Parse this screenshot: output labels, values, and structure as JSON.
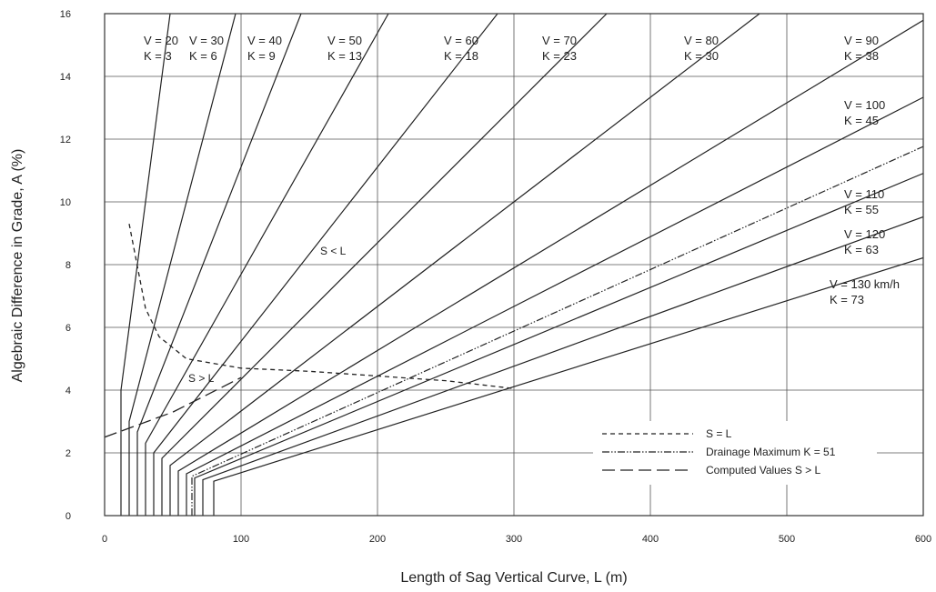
{
  "chart_data": {
    "type": "line",
    "xlabel": "Length of Sag Vertical Curve, L (m)",
    "ylabel": "Algebraic Difference in Grade, A (%)",
    "xlim": [
      0,
      600
    ],
    "ylim": [
      0,
      16
    ],
    "x_ticks": [
      "0",
      "100",
      "200",
      "300",
      "400",
      "500",
      "600"
    ],
    "y_ticks": [
      "0",
      "2",
      "4",
      "6",
      "8",
      "10",
      "12",
      "14",
      "16"
    ],
    "grid": true,
    "series": [
      {
        "v": "V = 20",
        "k": "K = 3",
        "K": 3,
        "min_L": 12
      },
      {
        "v": "V = 30",
        "k": "K = 6",
        "K": 6,
        "min_L": 18
      },
      {
        "v": "V = 40",
        "k": "K = 9",
        "K": 9,
        "min_L": 24
      },
      {
        "v": "V = 50",
        "k": "K = 13",
        "K": 13,
        "min_L": 30
      },
      {
        "v": "V = 60",
        "k": "K = 18",
        "K": 18,
        "min_L": 36
      },
      {
        "v": "V = 70",
        "k": "K = 23",
        "K": 23,
        "min_L": 42
      },
      {
        "v": "V = 80",
        "k": "K = 30",
        "K": 30,
        "min_L": 48
      },
      {
        "v": "V = 90",
        "k": "K = 38",
        "K": 38,
        "min_L": 54
      },
      {
        "v": "V = 100",
        "k": "K = 45",
        "K": 45,
        "min_L": 60
      },
      {
        "v": "V = 110",
        "k": "K = 55",
        "K": 55,
        "min_L": 66
      },
      {
        "v": "V = 120",
        "k": "K = 63",
        "K": 63,
        "min_L": 72
      },
      {
        "v": "V = 130 km/h",
        "k": "K = 73",
        "K": 73,
        "min_L": 80
      }
    ],
    "drainage_maximum": {
      "K": 51,
      "min_L": 64
    },
    "s_equals_l": {
      "x": [
        18,
        22,
        30,
        40,
        60,
        100,
        150,
        200,
        250,
        300
      ],
      "y": [
        9.3,
        8.4,
        6.6,
        5.7,
        5.0,
        4.7,
        4.6,
        4.45,
        4.3,
        4.05
      ]
    },
    "computed_s_gt_l": {
      "x": [
        0,
        50,
        100
      ],
      "y": [
        2.5,
        3.3,
        4.4
      ]
    },
    "regions": {
      "s_less_l": "S < L",
      "s_greater_l": "S > L"
    },
    "legend": {
      "s_equals_l": "S = L",
      "drainage": "Drainage Maximum K = 51",
      "computed": "Computed Values S > L"
    }
  }
}
